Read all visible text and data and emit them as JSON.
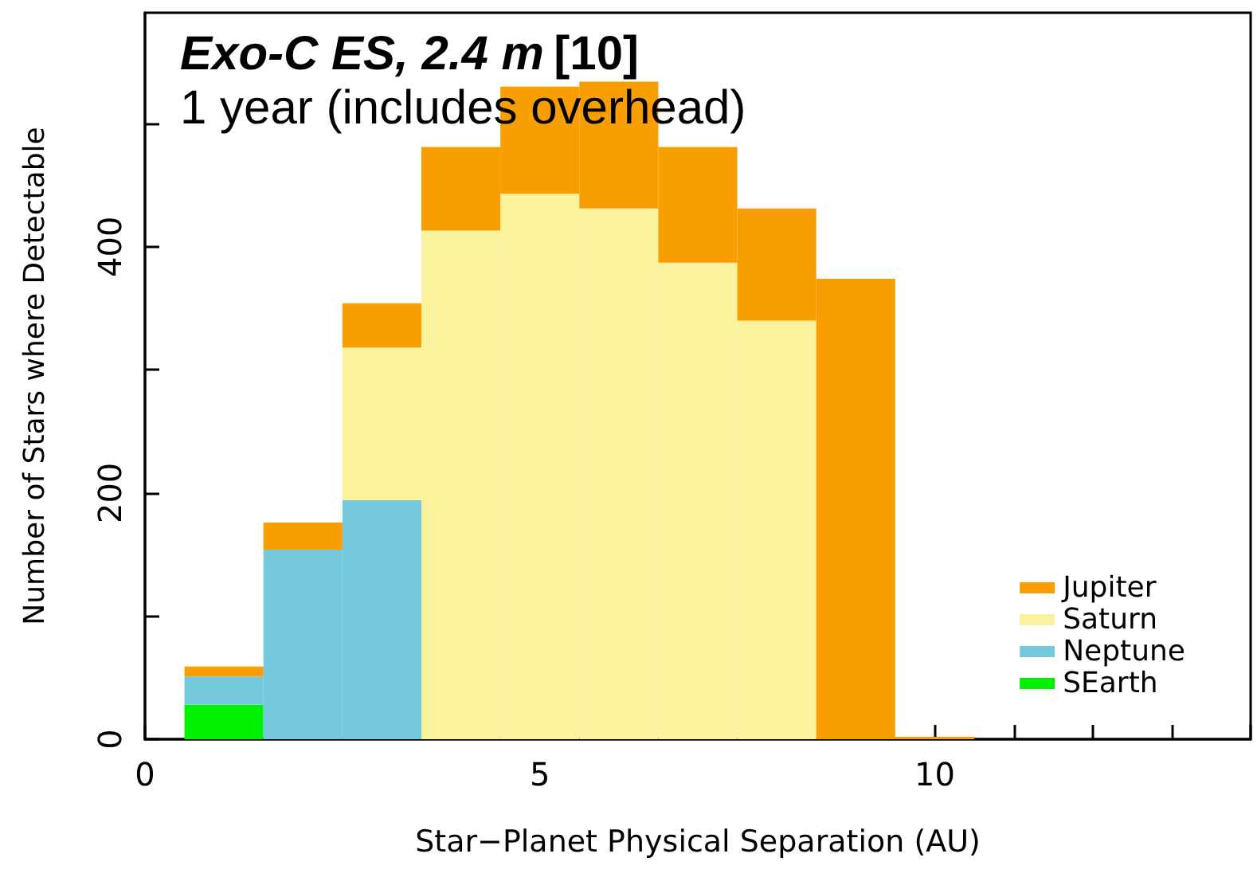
{
  "chart_data": {
    "type": "bar",
    "title": "Exo-C ES, 2.4 m [10]",
    "subtitle": "1 year (includes overhead)",
    "xlabel": "Star−Planet Physical Separation (AU)",
    "ylabel": "Number of Stars where Detectable",
    "x": [
      1,
      2,
      3,
      4,
      5,
      6,
      7,
      8,
      9,
      10
    ],
    "stacked": true,
    "series": [
      {
        "name": "SEarth",
        "color": "#00f000",
        "values": [
          28,
          0,
          0,
          0,
          0,
          0,
          0,
          0,
          0,
          0
        ]
      },
      {
        "name": "Neptune",
        "color": "#76c9dc",
        "values": [
          23,
          154,
          194,
          0,
          0,
          0,
          0,
          0,
          0,
          0
        ]
      },
      {
        "name": "Saturn",
        "color": "#faf29c",
        "values": [
          0,
          0,
          124,
          413,
          443,
          431,
          387,
          340,
          0,
          0
        ]
      },
      {
        "name": "Jupiter",
        "color": "#f99e00",
        "values": [
          8,
          22,
          36,
          68,
          87,
          103,
          94,
          91,
          374,
          2
        ]
      }
    ],
    "xlim": [
      0,
      14
    ],
    "xticks": [
      0,
      {
        "value": 1,
        "label": null
      },
      {
        "value": 2,
        "label": null
      },
      {
        "value": 3,
        "label": null
      },
      {
        "value": 4,
        "label": null
      },
      5,
      {
        "value": 6,
        "label": null
      },
      {
        "value": 7,
        "label": null
      },
      {
        "value": 8,
        "label": null
      },
      {
        "value": 9,
        "label": null
      },
      10,
      {
        "value": 11,
        "label": null
      },
      {
        "value": 12,
        "label": null
      },
      {
        "value": 13,
        "label": null
      },
      {
        "value": 14,
        "label": null
      }
    ],
    "ylim": [
      0,
      590
    ],
    "yticks": [
      0,
      {
        "value": 100,
        "label": null
      },
      200,
      {
        "value": 300,
        "label": null
      },
      400,
      {
        "value": 500,
        "label": null
      }
    ],
    "grid": false,
    "legend": "bottom right"
  }
}
